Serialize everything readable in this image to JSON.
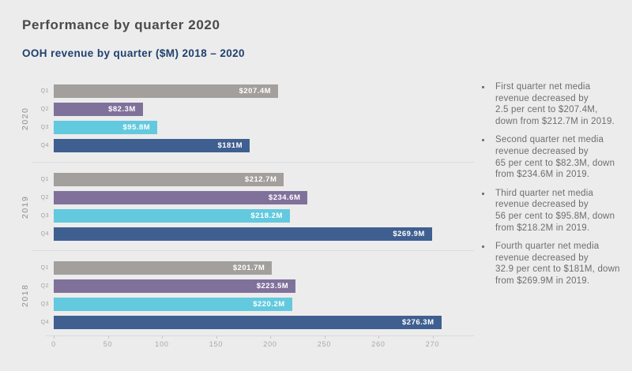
{
  "page": {
    "title": "Performance by quarter 2020"
  },
  "chart_data": {
    "type": "bar",
    "orientation": "horizontal",
    "title": "OOH revenue by quarter ($M) 2018 – 2020",
    "unit": "$M",
    "x_ticks": [
      0,
      50,
      100,
      150,
      200,
      250,
      260,
      270
    ],
    "axis_note": "tick marks equally spaced; scale compresses above 250",
    "grid": false,
    "legend": false,
    "palette": [
      "#a29f9c",
      "#80719b",
      "#62c9de",
      "#3f5f90"
    ],
    "groups": [
      {
        "year": "2020",
        "bars": [
          {
            "quarter": "Q1",
            "value": 207.4,
            "label": "$207.4M"
          },
          {
            "quarter": "Q2",
            "value": 82.3,
            "label": "$82.3M"
          },
          {
            "quarter": "Q3",
            "value": 95.8,
            "label": "$95.8M"
          },
          {
            "quarter": "Q4",
            "value": 181,
            "label": "$181M"
          }
        ]
      },
      {
        "year": "2019",
        "bars": [
          {
            "quarter": "Q1",
            "value": 212.7,
            "label": "$212.7M"
          },
          {
            "quarter": "Q2",
            "value": 234.6,
            "label": "$234.6M"
          },
          {
            "quarter": "Q3",
            "value": 218.2,
            "label": "$218.2M"
          },
          {
            "quarter": "Q4",
            "value": 269.9,
            "label": "$269.9M"
          }
        ]
      },
      {
        "year": "2018",
        "bars": [
          {
            "quarter": "Q1",
            "value": 201.7,
            "label": "$201.7M"
          },
          {
            "quarter": "Q2",
            "value": 223.5,
            "label": "$223.5M"
          },
          {
            "quarter": "Q3",
            "value": 220.2,
            "label": "$220.2M"
          },
          {
            "quarter": "Q4",
            "value": 276.3,
            "label": "$276.3M"
          }
        ]
      }
    ]
  },
  "insights": [
    "First quarter net media\nrevenue decreased by\n2.5 per cent to $207.4M,\ndown from $212.7M in 2019.",
    "Second quarter net media\nrevenue decreased by\n65 per cent to $82.3M, down\nfrom $234.6M in 2019.",
    "Third quarter net media\nrevenue decreased by\n56 per cent to $95.8M, down\nfrom $218.2M in 2019.",
    "Fourth quarter net media\nrevenue decreased by\n32.9 per cent to $181M, down\nfrom $269.9M in 2019."
  ]
}
